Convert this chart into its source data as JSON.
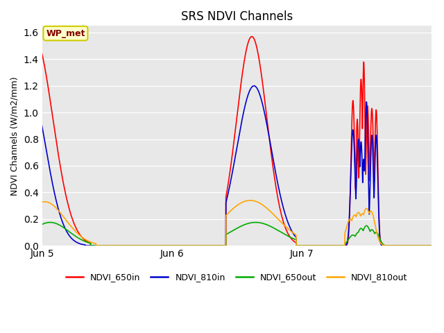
{
  "title": "SRS NDVI Channels",
  "ylabel": "NDVI Channels (W/m2/mm)",
  "xtick_labels": [
    "Jun 5",
    "Jun 6",
    "Jun 7"
  ],
  "ylim": [
    0.0,
    1.65
  ],
  "yticks": [
    0.0,
    0.2,
    0.4,
    0.6,
    0.8,
    1.0,
    1.2,
    1.4,
    1.6
  ],
  "colors": {
    "NDVI_650in": "#ff0000",
    "NDVI_810in": "#0000cc",
    "NDVI_650out": "#00aa00",
    "NDVI_810out": "#ffa500"
  },
  "legend_label": "WP_met",
  "legend_bbox_facecolor": "#ffffcc",
  "legend_text_color": "#800000",
  "legend_edge_color": "#cccc00",
  "bg_color": "#e8e8e8",
  "linewidth": 1.2,
  "xlim": [
    0,
    72
  ],
  "xtick_positions": [
    0,
    24,
    48
  ]
}
